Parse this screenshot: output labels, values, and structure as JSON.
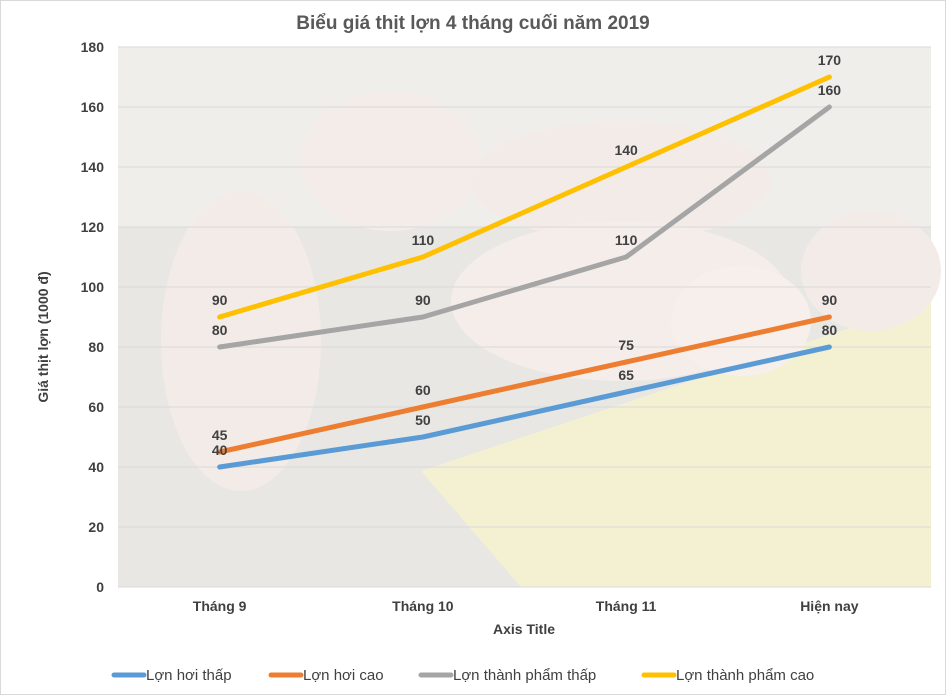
{
  "chart_data": {
    "type": "line",
    "title": "Biểu giá thịt lợn 4 tháng cuối năm 2019",
    "xlabel": "Axis Title",
    "ylabel": "Giá thịt lợn (1000 đ)",
    "categories": [
      "Tháng 9",
      "Tháng 10",
      "Tháng 11",
      "Hiện nay"
    ],
    "ylim": [
      0,
      180
    ],
    "yticks": [
      0,
      20,
      40,
      60,
      80,
      100,
      120,
      140,
      160,
      180
    ],
    "grid": true,
    "legend_position": "bottom",
    "background_image": "pigs-photo",
    "series": [
      {
        "name": "Lợn hơi thấp",
        "color": "#5b9bd5",
        "values": [
          40,
          50,
          65,
          80
        ]
      },
      {
        "name": "Lợn hơi cao",
        "color": "#ed7d31",
        "values": [
          45,
          60,
          75,
          90
        ]
      },
      {
        "name": "Lợn thành phẩm thấp",
        "color": "#a5a5a5",
        "values": [
          80,
          90,
          110,
          160
        ]
      },
      {
        "name": "Lợn thành phẩm cao",
        "color": "#ffc000",
        "values": [
          90,
          110,
          140,
          170
        ]
      }
    ]
  }
}
